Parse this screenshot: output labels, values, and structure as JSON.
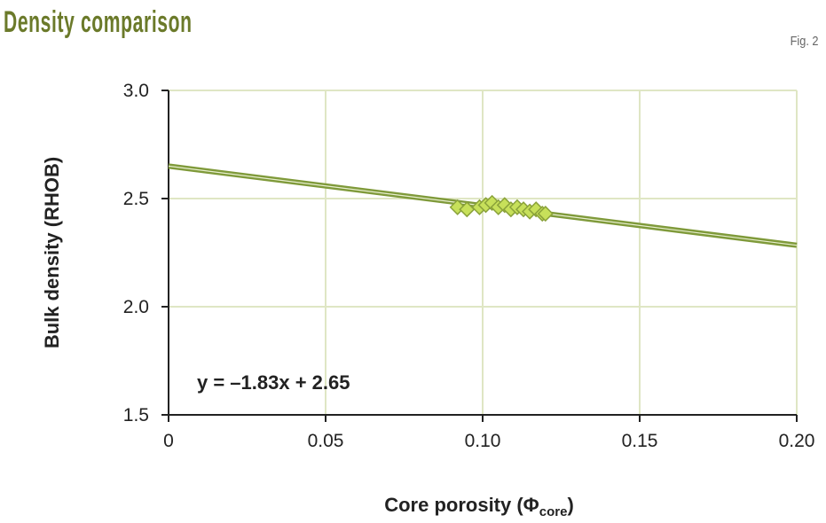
{
  "header": {
    "title": "Density comparison",
    "figure_label": "Fig. 2"
  },
  "chart_data": {
    "type": "scatter",
    "title": "Density comparison",
    "xlabel": "Core porosity (Φcore)",
    "xlabel_main": "Core porosity (Φ",
    "xlabel_sub": "core",
    "xlabel_end": ")",
    "ylabel": "Bulk density (RHOB)",
    "xlim": [
      0,
      0.2
    ],
    "ylim": [
      1.5,
      3.0
    ],
    "xticks": [
      "0",
      "0.05",
      "0.10",
      "0.15",
      "0.20"
    ],
    "xtick_values": [
      0,
      0.05,
      0.1,
      0.15,
      0.2
    ],
    "yticks": [
      "1.5",
      "2.0",
      "2.5",
      "3.0"
    ],
    "ytick_values": [
      1.5,
      2.0,
      2.5,
      3.0
    ],
    "grid": true,
    "points": {
      "x": [
        0.092,
        0.095,
        0.099,
        0.101,
        0.103,
        0.105,
        0.107,
        0.109,
        0.111,
        0.113,
        0.115,
        0.117,
        0.119,
        0.12
      ],
      "y": [
        2.46,
        2.45,
        2.46,
        2.47,
        2.48,
        2.46,
        2.47,
        2.45,
        2.46,
        2.45,
        2.44,
        2.45,
        2.43,
        2.43
      ]
    },
    "trendline": {
      "slope": -1.83,
      "intercept": 2.65,
      "equation": "y = –1.83x + 2.65"
    },
    "colors": {
      "grid": "#dfe6c4",
      "line": "#7f9a3a",
      "marker_fill": "#c7e05a",
      "marker_stroke": "#8aa23a",
      "title": "#6b7a2a"
    }
  }
}
